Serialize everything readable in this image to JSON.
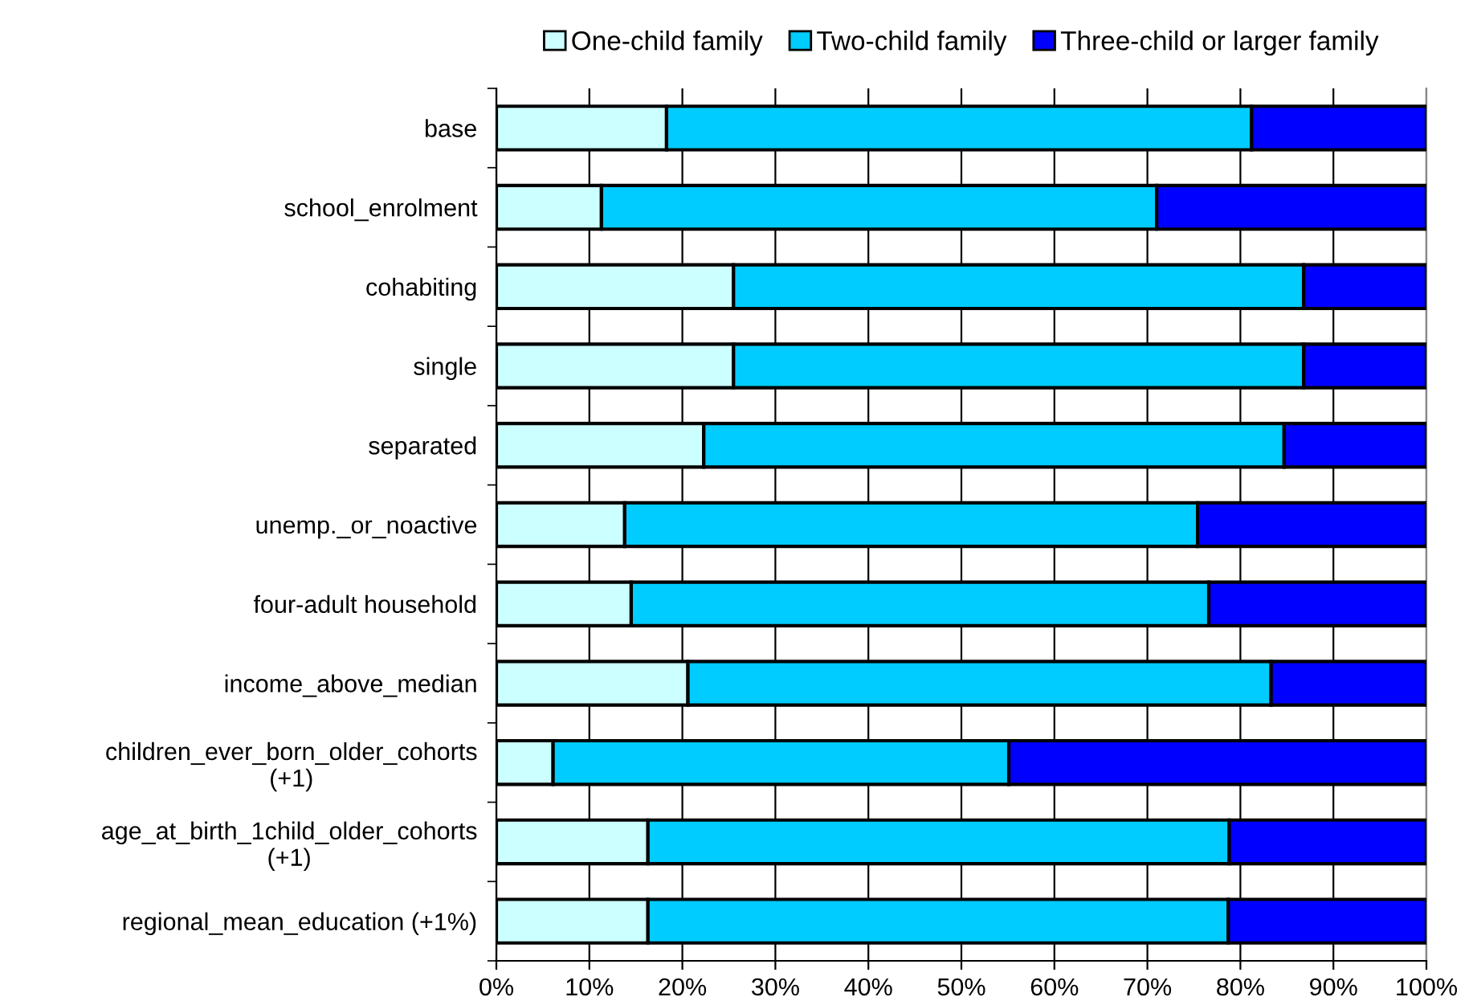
{
  "chart_data": {
    "type": "bar",
    "orientation": "horizontal",
    "stacked": true,
    "categories": [
      "base",
      "school_enrolment",
      "cohabiting",
      "single",
      "separated",
      "unemp._or_noactive",
      "four-adult household",
      "income_above_median",
      "children_ever_born_older_cohorts\n(+1)",
      "age_at_birth_1child_older_cohorts\n(+1)",
      "regional_mean_education (+1%)"
    ],
    "series": [
      {
        "name": "One-child family",
        "color": "#ccffff",
        "values": [
          18.3,
          11.3,
          25.5,
          25.5,
          22.3,
          13.8,
          14.5,
          20.6,
          6.1,
          16.3,
          16.3
        ]
      },
      {
        "name": "Two-child family",
        "color": "#00ccff",
        "values": [
          62.9,
          59.7,
          61.3,
          61.3,
          62.4,
          61.6,
          62.1,
          62.7,
          49.0,
          62.5,
          62.4
        ]
      },
      {
        "name": "Three-child or larger family",
        "color": "#0000ff",
        "values": [
          18.8,
          29.0,
          13.2,
          13.2,
          15.3,
          24.6,
          23.4,
          16.7,
          44.9,
          21.2,
          21.3
        ]
      }
    ],
    "xlim": [
      0,
      100
    ],
    "xticks": [
      {
        "value": 0,
        "label": "0%"
      },
      {
        "value": 10,
        "label": "10%"
      },
      {
        "value": 20,
        "label": "20%"
      },
      {
        "value": 30,
        "label": "30%"
      },
      {
        "value": 40,
        "label": "40%"
      },
      {
        "value": 50,
        "label": "50%"
      },
      {
        "value": 60,
        "label": "60%"
      },
      {
        "value": 70,
        "label": "70%"
      },
      {
        "value": 80,
        "label": "80%"
      },
      {
        "value": 90,
        "label": "90%"
      },
      {
        "value": 100,
        "label": "100%"
      }
    ],
    "grid": "x",
    "legend": "top"
  }
}
